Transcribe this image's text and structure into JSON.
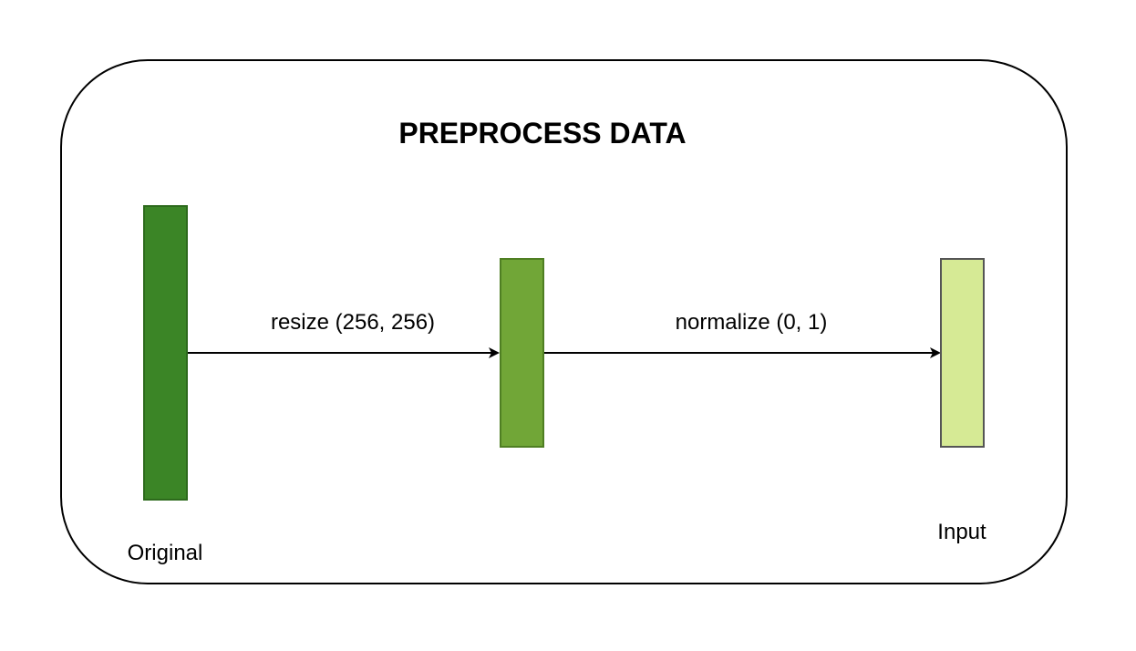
{
  "diagram": {
    "title": "PREPROCESS DATA",
    "nodes": [
      {
        "label": "Original",
        "color": "#3b8526",
        "stroke": "#2d6a1c"
      },
      {
        "label": "",
        "color": "#71a637",
        "stroke": "#4f7f23"
      },
      {
        "label": "Input",
        "color": "#d6ea95",
        "stroke": "#555555"
      }
    ],
    "edges": [
      {
        "label": "resize (256, 256)"
      },
      {
        "label": "normalize (0, 1)"
      }
    ]
  }
}
